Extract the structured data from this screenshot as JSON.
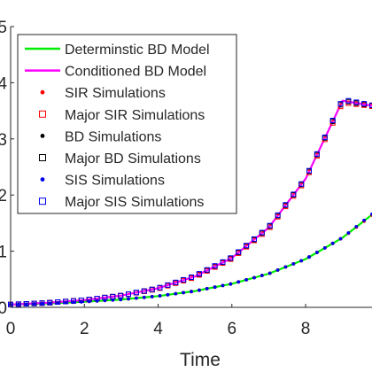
{
  "chart_data": {
    "type": "line",
    "xlabel": "Time",
    "ylabel": "",
    "xlim": [
      0,
      9.8
    ],
    "ylim": [
      0,
      5
    ],
    "x_ticks": [
      "0",
      "2",
      "4",
      "6",
      "8"
    ],
    "y_ticks": [
      "0",
      "1",
      "2",
      "3",
      "4",
      "5"
    ],
    "legend_position": "top-left",
    "series": [
      {
        "name": "Determinstic BD Model",
        "kind": "line",
        "color": "#00ee00",
        "x": [
          0,
          1,
          2,
          3,
          4,
          5,
          6,
          7,
          8,
          9,
          9.8
        ],
        "y": [
          0.05,
          0.07,
          0.1,
          0.14,
          0.2,
          0.29,
          0.42,
          0.6,
          0.86,
          1.24,
          1.65
        ]
      },
      {
        "name": "Conditioned BD Model",
        "kind": "line",
        "color": "#ff00ff",
        "x": [
          0,
          1,
          2,
          3,
          4,
          5,
          6,
          7,
          8,
          9,
          9.8
        ],
        "y": [
          0.05,
          0.08,
          0.13,
          0.21,
          0.34,
          0.55,
          0.88,
          1.42,
          2.29,
          3.68,
          3.59
        ]
      },
      {
        "name": "SIR Simulations",
        "kind": "dot",
        "color": "#ff0000",
        "x": [
          0,
          1,
          2,
          3,
          4,
          5,
          6,
          7,
          8,
          9,
          9.8
        ],
        "y": [
          0.05,
          0.07,
          0.1,
          0.14,
          0.2,
          0.29,
          0.42,
          0.6,
          0.86,
          1.24,
          1.64
        ]
      },
      {
        "name": "Major SIR Simulations",
        "kind": "square",
        "color": "#ff0000",
        "x": [
          0,
          1,
          2,
          3,
          4,
          5,
          6,
          7,
          8,
          9,
          9.8
        ],
        "y": [
          0.05,
          0.08,
          0.13,
          0.21,
          0.33,
          0.54,
          0.87,
          1.4,
          2.27,
          3.65,
          3.58
        ]
      },
      {
        "name": "BD Simulations",
        "kind": "dot",
        "color": "#000000",
        "x": [
          0,
          1,
          2,
          3,
          4,
          5,
          6,
          7,
          8,
          9,
          9.8
        ],
        "y": [
          0.05,
          0.07,
          0.1,
          0.14,
          0.2,
          0.29,
          0.42,
          0.6,
          0.86,
          1.24,
          1.65
        ]
      },
      {
        "name": "Major BD Simulations",
        "kind": "square",
        "color": "#000000",
        "x": [
          0,
          1,
          2,
          3,
          4,
          5,
          6,
          7,
          8,
          9,
          9.8
        ],
        "y": [
          0.05,
          0.08,
          0.13,
          0.21,
          0.34,
          0.55,
          0.88,
          1.42,
          2.29,
          3.68,
          3.59
        ]
      },
      {
        "name": "SIS Simulations",
        "kind": "dot",
        "color": "#0000ee",
        "x": [
          0,
          1,
          2,
          3,
          4,
          5,
          6,
          7,
          8,
          9,
          9.8
        ],
        "y": [
          0.05,
          0.07,
          0.1,
          0.14,
          0.2,
          0.29,
          0.42,
          0.6,
          0.86,
          1.24,
          1.66
        ]
      },
      {
        "name": "Major SIS Simulations",
        "kind": "square",
        "color": "#0000ee",
        "x": [
          0,
          1,
          2,
          3,
          4,
          5,
          6,
          7,
          8,
          9,
          9.8
        ],
        "y": [
          0.05,
          0.08,
          0.13,
          0.21,
          0.34,
          0.56,
          0.89,
          1.43,
          2.3,
          3.7,
          3.6
        ]
      }
    ]
  }
}
